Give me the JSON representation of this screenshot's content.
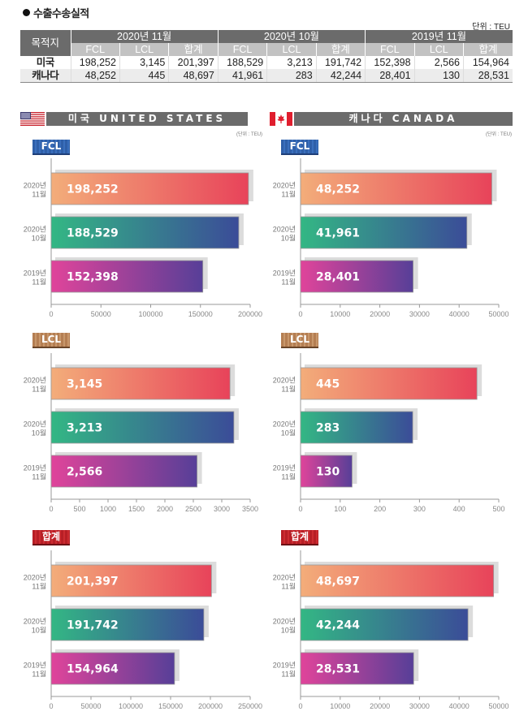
{
  "page": {
    "title": "수출수송실적",
    "unit_label": "단위 : TEU"
  },
  "table": {
    "corner_header": "목적지",
    "period_headers": [
      "2020년 11월",
      "2020년 10월",
      "2019년 11월"
    ],
    "sub_headers": [
      "FCL",
      "LCL",
      "합계",
      "FCL",
      "LCL",
      "합계",
      "FCL",
      "LCL",
      "합계"
    ],
    "rows": [
      {
        "label": "미국",
        "values": [
          "198,252",
          "3,145",
          "201,397",
          "188,529",
          "3,213",
          "191,742",
          "152,398",
          "2,566",
          "154,964"
        ]
      },
      {
        "label": "캐나다",
        "values": [
          "48,252",
          "445",
          "48,697",
          "41,961",
          "283",
          "42,244",
          "28,401",
          "130",
          "28,531"
        ]
      }
    ]
  },
  "sections": {
    "us": {
      "banner": "미국 UNITED STATES",
      "unit": "(단위 : TEU)"
    },
    "ca": {
      "banner": "캐나다 CANADA",
      "unit": "(단위 : TEU)"
    }
  },
  "badges": {
    "fcl": "FCL",
    "lcl": "LCL",
    "sum": "합계"
  },
  "colors": {
    "bar_2020_11": [
      "#f3ad7a",
      "#e8435a"
    ],
    "bar_2020_10": [
      "#33b784",
      "#3b4c98"
    ],
    "bar_2019_11": [
      "#e0449a",
      "#573f98"
    ],
    "shadow": "#dcdcdc",
    "banner_gray": "#6b6b6b"
  },
  "chart_data": [
    {
      "id": "us-fcl",
      "type": "bar",
      "orientation": "horizontal",
      "title": "FCL",
      "country": "미국",
      "categories": [
        "2020년 11월",
        "2020년 10월",
        "2019년 11월"
      ],
      "values": [
        198252,
        188529,
        152398
      ],
      "labels": [
        "198,252",
        "188,529",
        "152,398"
      ],
      "xlim": [
        0,
        200000
      ],
      "xticks": [
        0,
        50000,
        100000,
        150000,
        200000
      ],
      "unit": "TEU"
    },
    {
      "id": "ca-fcl",
      "type": "bar",
      "orientation": "horizontal",
      "title": "FCL",
      "country": "캐나다",
      "categories": [
        "2020년 11월",
        "2020년 10월",
        "2019년 11월"
      ],
      "values": [
        48252,
        41961,
        28401
      ],
      "labels": [
        "48,252",
        "41,961",
        "28,401"
      ],
      "xlim": [
        0,
        50000
      ],
      "xticks": [
        0,
        10000,
        20000,
        30000,
        40000,
        50000
      ],
      "unit": "TEU"
    },
    {
      "id": "us-lcl",
      "type": "bar",
      "orientation": "horizontal",
      "title": "LCL",
      "country": "미국",
      "categories": [
        "2020년 11월",
        "2020년 10월",
        "2019년 11월"
      ],
      "values": [
        3145,
        3213,
        2566
      ],
      "labels": [
        "3,145",
        "3,213",
        "2,566"
      ],
      "xlim": [
        0,
        3500
      ],
      "xticks": [
        0,
        500,
        1000,
        1500,
        2000,
        2500,
        3000,
        3500
      ],
      "unit": "TEU"
    },
    {
      "id": "ca-lcl",
      "type": "bar",
      "orientation": "horizontal",
      "title": "LCL",
      "country": "캐나다",
      "categories": [
        "2020년 11월",
        "2020년 10월",
        "2019년 11월"
      ],
      "values": [
        445,
        283,
        130
      ],
      "labels": [
        "445",
        "283",
        "130"
      ],
      "xlim": [
        0,
        500
      ],
      "xticks": [
        0,
        100,
        200,
        300,
        400,
        500
      ],
      "unit": "TEU"
    },
    {
      "id": "us-sum",
      "type": "bar",
      "orientation": "horizontal",
      "title": "합계",
      "country": "미국",
      "categories": [
        "2020년 11월",
        "2020년 10월",
        "2019년 11월"
      ],
      "values": [
        201397,
        191742,
        154964
      ],
      "labels": [
        "201,397",
        "191,742",
        "154,964"
      ],
      "xlim": [
        0,
        250000
      ],
      "xticks": [
        0,
        50000,
        100000,
        150000,
        200000,
        250000
      ],
      "unit": "TEU"
    },
    {
      "id": "ca-sum",
      "type": "bar",
      "orientation": "horizontal",
      "title": "합계",
      "country": "캐나다",
      "categories": [
        "2020년 11월",
        "2020년 10월",
        "2019년 11월"
      ],
      "values": [
        48697,
        42244,
        28531
      ],
      "labels": [
        "48,697",
        "42,244",
        "28,531"
      ],
      "xlim": [
        0,
        50000
      ],
      "xticks": [
        0,
        10000,
        20000,
        30000,
        40000,
        50000
      ],
      "unit": "TEU"
    }
  ]
}
